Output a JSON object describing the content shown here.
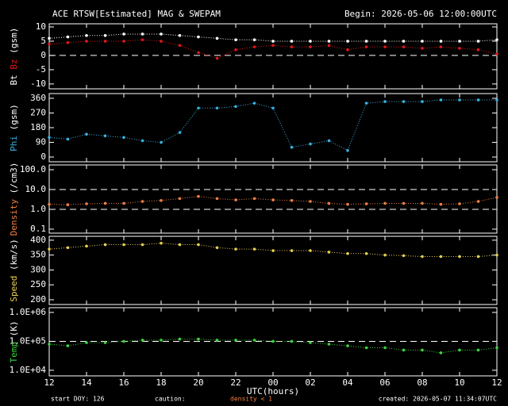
{
  "header": {
    "title": "ACE RTSW[Estimated] MAG & SWEPAM",
    "begin": "Begin: 2026-05-06 12:00:00UTC"
  },
  "footer": {
    "start": "start DOY: 126",
    "caution": "caution:",
    "caution_note": "density < 1",
    "caution_color": "#f08040",
    "created": "created: 2026-05-07 11:34:07UTC"
  },
  "chart_data": [
    {
      "type": "scatter",
      "ylabel": [
        {
          "text": "Bt",
          "color": "#ffffff"
        },
        {
          "text": "Bz",
          "color": "#e01818"
        },
        {
          "text": "(gsm)",
          "color": "#ffffff"
        }
      ],
      "x": [
        12,
        13,
        14,
        15,
        16,
        17,
        18,
        19,
        20,
        21,
        22,
        23,
        24,
        25,
        26,
        27,
        28,
        29,
        30,
        31,
        32,
        33,
        34,
        35,
        36
      ],
      "series": [
        {
          "name": "Bt",
          "color": "#ffffff",
          "values": [
            6,
            6.5,
            7,
            7,
            7.5,
            7.5,
            7.5,
            7,
            6.5,
            6,
            5.5,
            5.5,
            5,
            5,
            5,
            5,
            5,
            5,
            5,
            5,
            5,
            5,
            5,
            5,
            5.5
          ]
        },
        {
          "name": "Bz",
          "color": "#e01818",
          "values": [
            4,
            4.5,
            5,
            5,
            5,
            5.5,
            5,
            3.5,
            1,
            -1,
            2,
            3,
            3.5,
            3,
            3,
            3.5,
            2,
            3,
            3,
            3,
            2.5,
            3,
            2.5,
            2,
            0.5
          ]
        }
      ],
      "xlim": [
        12,
        36
      ],
      "ylim": [
        -11.7,
        11.1
      ],
      "yticks": [
        -10,
        -5,
        0,
        5,
        10
      ],
      "ref_lines": [
        0
      ]
    },
    {
      "type": "scatter",
      "ylabel": [
        {
          "text": "Phi",
          "color": "#3ab0e0"
        },
        {
          "text": "(gsm)",
          "color": "#ffffff"
        }
      ],
      "x": [
        12,
        13,
        14,
        15,
        16,
        17,
        18,
        19,
        20,
        21,
        22,
        23,
        24,
        25,
        26,
        27,
        28,
        29,
        30,
        31,
        32,
        33,
        34,
        35,
        36
      ],
      "series": [
        {
          "name": "Phi",
          "color": "#3ab0e0",
          "values": [
            120,
            110,
            140,
            130,
            120,
            100,
            90,
            150,
            300,
            300,
            310,
            330,
            300,
            60,
            80,
            100,
            40,
            330,
            340,
            340,
            340,
            350,
            350,
            350,
            350
          ]
        }
      ],
      "xlim": [
        12,
        36
      ],
      "ylim": [
        -29,
        389
      ],
      "yticks": [
        0,
        90,
        180,
        270,
        360
      ]
    },
    {
      "type": "scatter",
      "log": true,
      "ylabel": [
        {
          "text": "Density",
          "color": "#f08040"
        },
        {
          "text": "(/cm3)",
          "color": "#ffffff"
        }
      ],
      "x": [
        12,
        13,
        14,
        15,
        16,
        17,
        18,
        19,
        20,
        21,
        22,
        23,
        24,
        25,
        26,
        27,
        28,
        29,
        30,
        31,
        32,
        33,
        34,
        35,
        36
      ],
      "series": [
        {
          "name": "Density",
          "color": "#f08040",
          "values": [
            1.8,
            1.7,
            1.9,
            2,
            2,
            2.5,
            2.8,
            3.5,
            4.5,
            3.5,
            3,
            3.5,
            3,
            2.8,
            2.5,
            2,
            1.8,
            1.9,
            2,
            2,
            2,
            1.8,
            1.9,
            2.5,
            4
          ]
        }
      ],
      "xlim": [
        12,
        36
      ],
      "ylim": [
        0.063,
        174
      ],
      "yticks": [
        0.1,
        {
          "value": 1,
          "label": "1.0"
        },
        {
          "value": 10,
          "label": "10.0"
        },
        {
          "value": 100,
          "label": "100.0"
        }
      ],
      "ref_lines": [
        1,
        10
      ]
    },
    {
      "type": "scatter",
      "ylabel": [
        {
          "text": "Speed",
          "color": "#e8d050"
        },
        {
          "text": "(km/s)",
          "color": "#ffffff"
        }
      ],
      "x": [
        12,
        13,
        14,
        15,
        16,
        17,
        18,
        19,
        20,
        21,
        22,
        23,
        24,
        25,
        26,
        27,
        28,
        29,
        30,
        31,
        32,
        33,
        34,
        35,
        36
      ],
      "series": [
        {
          "name": "Speed",
          "color": "#e8d050",
          "values": [
            370,
            375,
            380,
            385,
            385,
            385,
            390,
            385,
            385,
            375,
            370,
            370,
            365,
            365,
            365,
            360,
            355,
            355,
            350,
            348,
            345,
            345,
            345,
            345,
            350
          ]
        }
      ],
      "xlim": [
        12,
        36
      ],
      "ylim": [
        184,
        413
      ],
      "yticks": [
        200,
        250,
        300,
        350,
        400
      ]
    },
    {
      "type": "scatter",
      "log": true,
      "ylabel": [
        {
          "text": "Temp",
          "color": "#40d040"
        },
        {
          "text": "(K)",
          "color": "#ffffff"
        }
      ],
      "x": [
        12,
        13,
        14,
        15,
        16,
        17,
        18,
        19,
        20,
        21,
        22,
        23,
        24,
        25,
        26,
        27,
        28,
        29,
        30,
        31,
        32,
        33,
        34,
        35,
        36
      ],
      "series": [
        {
          "name": "Temp",
          "color": "#40d040",
          "values": [
            80000,
            70000,
            90000,
            90000,
            100000,
            110000,
            110000,
            120000,
            120000,
            110000,
            110000,
            110000,
            100000,
            100000,
            90000,
            80000,
            70000,
            60000,
            60000,
            50000,
            50000,
            40000,
            50000,
            50000,
            60000
          ]
        }
      ],
      "xlim": [
        12,
        36
      ],
      "ylim": [
        6400,
        1460000
      ],
      "yticks": [
        {
          "value": 10000,
          "label": "1.0E+04"
        },
        {
          "value": 100000,
          "label": "1.0E+05"
        },
        {
          "value": 1000000,
          "label": "1.0E+06"
        }
      ],
      "ref_lines": [
        100000
      ],
      "xlabel": "UTC(hours)",
      "xticks": [
        12,
        14,
        16,
        18,
        20,
        22,
        {
          "value": 24,
          "label": "00"
        },
        {
          "value": 26,
          "label": "02"
        },
        {
          "value": 28,
          "label": "04"
        },
        {
          "value": 30,
          "label": "06"
        },
        {
          "value": 32,
          "label": "08"
        },
        {
          "value": 34,
          "label": "10"
        },
        {
          "value": 36,
          "label": "12"
        }
      ]
    }
  ]
}
